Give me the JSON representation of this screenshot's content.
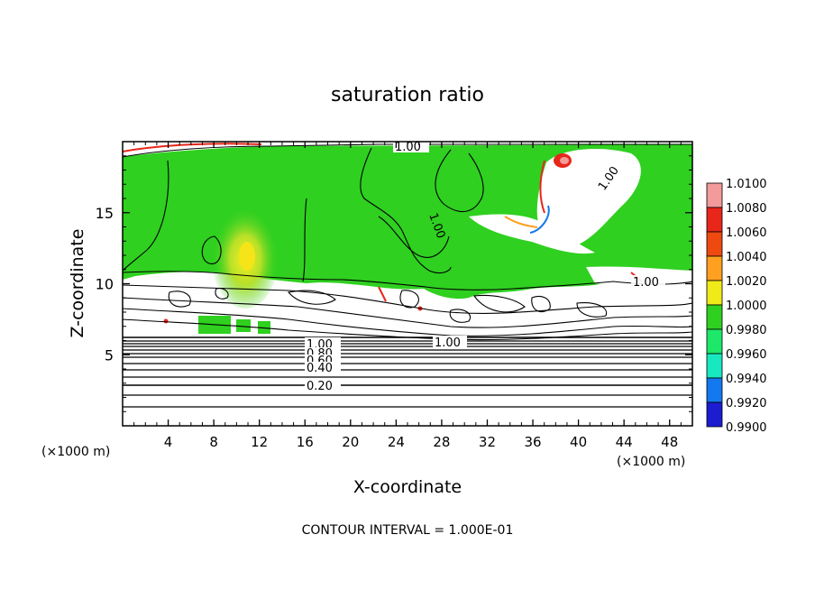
{
  "chart_data": {
    "type": "heatmap",
    "title": "saturation ratio",
    "xlabel": "X-coordinate",
    "ylabel": "Z-coordinate",
    "x_units_left": "(×1000 m)",
    "x_units_right": "(×1000 m)",
    "xlim": [
      0,
      50
    ],
    "ylim": [
      0,
      20
    ],
    "x_ticks": [
      4,
      8,
      12,
      16,
      20,
      24,
      28,
      32,
      36,
      40,
      44,
      48
    ],
    "y_ticks": [
      5,
      10,
      15
    ],
    "colorbar": {
      "levels": [
        "1.0100",
        "1.0080",
        "1.0060",
        "1.0040",
        "1.0020",
        "1.0000",
        "0.9980",
        "0.9960",
        "0.9940",
        "0.9920",
        "0.9900"
      ],
      "colors": [
        "#f39a9a",
        "#e8261a",
        "#ee4a10",
        "#ffa020",
        "#f0ea18",
        "#2fd020",
        "#1ee86a",
        "#18e8c0",
        "#1478ee",
        "#1c1cd0",
        "#3a1496"
      ]
    },
    "contour_labels": [
      "1.00",
      "1.00",
      "1.00",
      "1.00",
      "1.00",
      "1.00",
      "0.80",
      "0.60",
      "0.40",
      "0.20"
    ],
    "contour_interval": "CONTOUR INTERVAL = 1.000E-01"
  }
}
